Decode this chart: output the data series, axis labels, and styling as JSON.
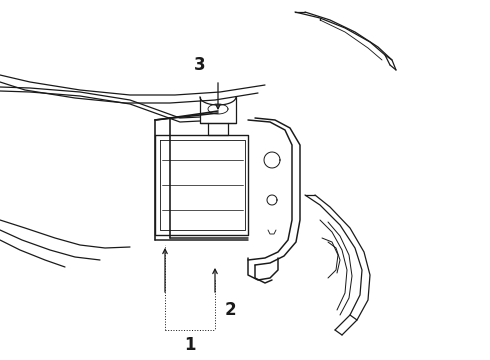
{
  "background": "#ffffff",
  "line_color": "#1a1a1a",
  "line_width": 0.9,
  "label_fontsize": 12,
  "label_fontweight": "bold"
}
